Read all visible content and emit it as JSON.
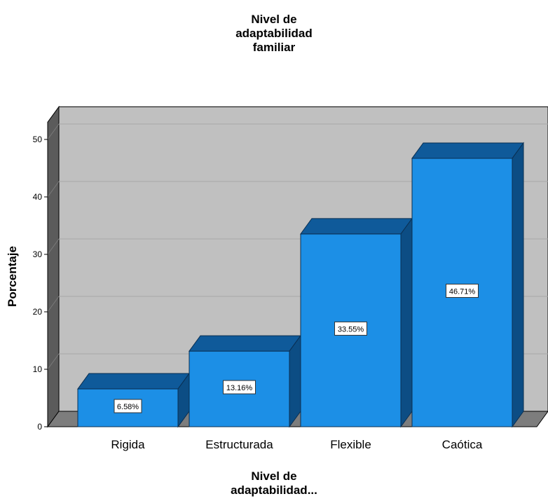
{
  "chart_data": {
    "type": "bar",
    "title_lines": [
      "Nivel de",
      "adaptabilidad",
      "familiar"
    ],
    "xlabel_lines": [
      "Nivel de",
      "adaptabilidad..."
    ],
    "ylabel": "Porcentaje",
    "categories": [
      "Rigida",
      "Estructurada",
      "Flexible",
      "Caótica"
    ],
    "values": [
      6.58,
      13.16,
      33.55,
      46.71
    ],
    "data_labels": [
      "6.58%",
      "13.16%",
      "33.55%",
      "46.71%"
    ],
    "yticks": [
      0,
      10,
      20,
      30,
      40,
      50
    ],
    "ylim": [
      0,
      53
    ],
    "grid": true,
    "style": "3d",
    "colors": {
      "bar_front": "#1c8fe6",
      "bar_top": "#0f5a9a",
      "bar_side": "#0c4d84",
      "wall_back": "#c0c0c0",
      "wall_side": "#5b5b5b",
      "floor": "#7d7d7d"
    }
  }
}
